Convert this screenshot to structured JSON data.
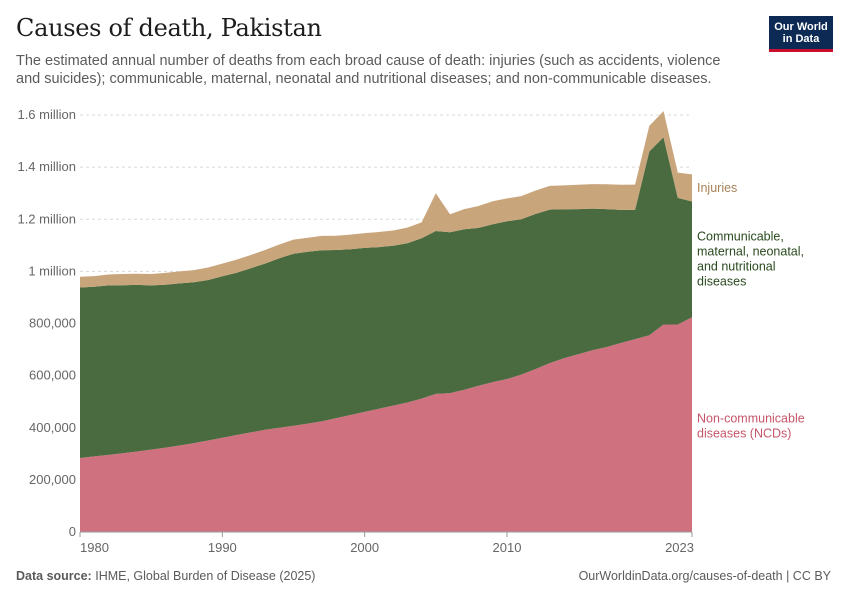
{
  "title": "Causes of death, Pakistan",
  "subtitle": "The estimated annual number of deaths from each broad cause of death: injuries (such as accidents, violence and suicides); communicable, maternal, neonatal and nutritional diseases; and non-communicable diseases.",
  "logo": {
    "line1": "Our World",
    "line2": "in Data"
  },
  "footer": {
    "source_label": "Data source:",
    "source_text": "IHME, Global Burden of Disease (2025)",
    "url": "OurWorldinData.org/causes-of-death | CC BY"
  },
  "chart_data": {
    "type": "area",
    "stacked": true,
    "x": [
      1980,
      1981,
      1982,
      1983,
      1984,
      1985,
      1986,
      1987,
      1988,
      1989,
      1990,
      1991,
      1992,
      1993,
      1994,
      1995,
      1996,
      1997,
      1998,
      1999,
      2000,
      2001,
      2002,
      2003,
      2004,
      2005,
      2006,
      2007,
      2008,
      2009,
      2010,
      2011,
      2012,
      2013,
      2014,
      2015,
      2016,
      2017,
      2018,
      2019,
      2020,
      2021,
      2022,
      2023
    ],
    "xlim": [
      1980,
      2023
    ],
    "ylim": [
      0,
      1600000
    ],
    "x_ticks": [
      1980,
      1990,
      2000,
      2010,
      2023
    ],
    "y_ticks": [
      0,
      200000,
      400000,
      600000,
      800000,
      1000000,
      1200000,
      1400000,
      1600000
    ],
    "y_tick_labels": [
      "0",
      "200,000",
      "400,000",
      "600,000",
      "800,000",
      "1 million",
      "1.2 million",
      "1.4 million",
      "1.6 million"
    ],
    "grid": true,
    "legend_placement": "right-inline",
    "series": [
      {
        "name": "Non-communicable diseases (NCDs)",
        "label_lines": [
          "Non-communicable",
          "diseases (NCDs)"
        ],
        "color": "#cf717f",
        "values": [
          284000,
          290000,
          296000,
          302000,
          309000,
          316000,
          324000,
          332000,
          341000,
          351000,
          362000,
          372000,
          382000,
          392000,
          400000,
          408000,
          416000,
          425000,
          437000,
          449000,
          461000,
          473000,
          485000,
          497000,
          512000,
          530000,
          533000,
          546000,
          561000,
          575000,
          587000,
          604000,
          625000,
          648000,
          667000,
          682000,
          697000,
          710000,
          725000,
          740000,
          755000,
          796000,
          796000,
          824000
        ]
      },
      {
        "name": "Communicable, maternal, neonatal, and nutritional diseases",
        "label_lines": [
          "Communicable,",
          "maternal, neonatal,",
          "and nutritional",
          "diseases"
        ],
        "color": "#4a6b3f",
        "values": [
          654000,
          651000,
          650000,
          645000,
          639000,
          630000,
          625000,
          622000,
          617000,
          616000,
          619000,
          623000,
          630000,
          638000,
          650000,
          660000,
          659000,
          656000,
          645000,
          636000,
          629000,
          620000,
          613000,
          611000,
          615000,
          625000,
          617000,
          616000,
          606000,
          606000,
          605000,
          596000,
          595000,
          589000,
          571000,
          557000,
          544000,
          529000,
          511000,
          496000,
          705000,
          719000,
          486000,
          444000
        ]
      },
      {
        "name": "Injuries",
        "label_lines": [
          "Injuries"
        ],
        "color": "#c9a57c",
        "values": [
          41000,
          41000,
          42000,
          43000,
          43000,
          44000,
          45000,
          46000,
          47000,
          48000,
          49000,
          50000,
          51000,
          52000,
          53000,
          54000,
          54000,
          55000,
          55000,
          56000,
          57000,
          58000,
          59000,
          60000,
          61000,
          145000,
          69000,
          77000,
          84000,
          88000,
          88000,
          89000,
          90000,
          91000,
          92000,
          93000,
          94000,
          95000,
          96000,
          97000,
          98000,
          100000,
          97000,
          104000
        ]
      }
    ]
  }
}
